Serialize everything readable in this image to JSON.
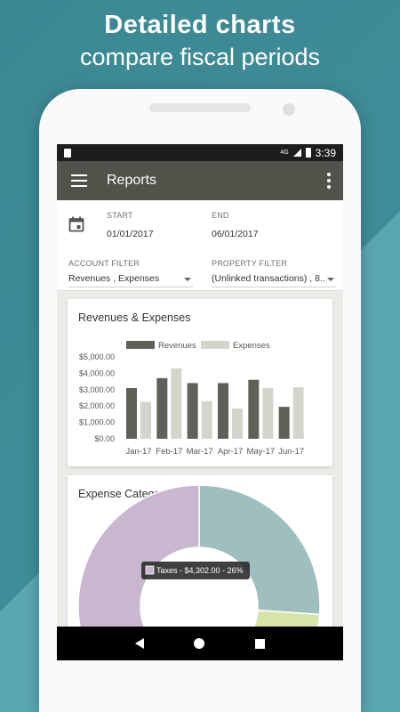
{
  "promo": {
    "line1": "Detailed charts",
    "line2": "compare fiscal periods"
  },
  "status_bar": {
    "network": "4G",
    "time": "3:39"
  },
  "app_bar": {
    "title": "Reports",
    "menu_icon": "hamburger-icon",
    "overflow_icon": "more-vert-icon"
  },
  "filters": {
    "start_label": "START",
    "start_value": "01/01/2017",
    "end_label": "END",
    "end_value": "06/01/2017",
    "account_label": "ACCOUNT FILTER",
    "account_value": "Revenues , Expenses",
    "property_label": "PROPERTY FILTER",
    "property_value": "(Unlinked transactions) , 8..."
  },
  "revenues_card": {
    "title": "Revenues & Expenses"
  },
  "expense_card": {
    "title": "Expense Category",
    "tooltip": "Taxes - $4,302.00 - 26%"
  },
  "colors": {
    "revenues": "#5e6158",
    "expenses": "#d3d5cd",
    "appbar": "#4f5349"
  },
  "chart_data": [
    {
      "type": "bar",
      "title": "Revenues & Expenses",
      "categories": [
        "Jan-17",
        "Feb-17",
        "Mar-17",
        "Apr-17",
        "May-17",
        "Jun-17"
      ],
      "series": [
        {
          "name": "Revenues",
          "color": "#5e6158",
          "values": [
            3100,
            3700,
            3400,
            3400,
            3600,
            1950
          ]
        },
        {
          "name": "Expenses",
          "color": "#d3d5cd",
          "values": [
            2250,
            4300,
            2300,
            1850,
            3100,
            3150
          ]
        }
      ],
      "y_ticks": [
        "$0.00",
        "$1,000.00",
        "$2,000.00",
        "$3,000.00",
        "$4,000.00",
        "$5,000.00"
      ],
      "ylim": [
        0,
        5000
      ],
      "legend": "top",
      "grid": false
    },
    {
      "type": "pie",
      "title": "Expense Category",
      "style": "donut",
      "slices": [
        {
          "label": "Taxes",
          "value": 4302,
          "percent": 26,
          "color": "#9fbfbe"
        },
        {
          "label": "",
          "value": null,
          "color": "#d7e4a9"
        },
        {
          "label": "",
          "value": null,
          "color": "#c9b7cf"
        }
      ]
    }
  ]
}
